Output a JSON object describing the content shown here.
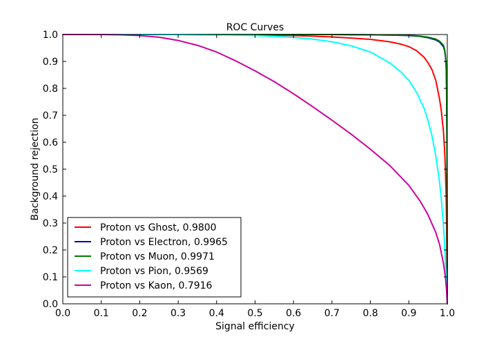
{
  "chart_data": {
    "type": "line",
    "title": "ROC Curves",
    "xlabel": "Signal efficiency",
    "ylabel": "Background rejection",
    "xlim": [
      0.0,
      1.0
    ],
    "ylim": [
      0.0,
      1.0
    ],
    "xticks": [
      "0.0",
      "0.1",
      "0.2",
      "0.3",
      "0.4",
      "0.5",
      "0.6",
      "0.7",
      "0.8",
      "0.9",
      "1.0"
    ],
    "yticks": [
      "0.0",
      "0.1",
      "0.2",
      "0.3",
      "0.4",
      "0.5",
      "0.6",
      "0.7",
      "0.8",
      "0.9",
      "1.0"
    ],
    "grid": false,
    "legend_position": "lower-left",
    "series": [
      {
        "name": "Proton vs Ghost, 0.9800",
        "color": "#ff0000",
        "x": [
          0.0,
          0.1,
          0.2,
          0.3,
          0.4,
          0.5,
          0.6,
          0.65,
          0.7,
          0.75,
          0.8,
          0.85,
          0.88,
          0.9,
          0.92,
          0.94,
          0.95,
          0.96,
          0.97,
          0.98,
          0.985,
          0.99,
          0.993,
          0.995,
          0.997,
          0.998,
          0.999,
          1.0
        ],
        "y": [
          1.0,
          1.0,
          1.0,
          1.0,
          0.999,
          0.998,
          0.996,
          0.994,
          0.991,
          0.987,
          0.982,
          0.973,
          0.964,
          0.955,
          0.94,
          0.915,
          0.895,
          0.87,
          0.83,
          0.76,
          0.71,
          0.64,
          0.57,
          0.5,
          0.4,
          0.3,
          0.15,
          0.0
        ]
      },
      {
        "name": "Proton vs Electron, 0.9965",
        "color": "#0000bb",
        "x": [
          0.0,
          0.2,
          0.4,
          0.6,
          0.7,
          0.8,
          0.85,
          0.9,
          0.93,
          0.95,
          0.97,
          0.98,
          0.99,
          0.993,
          0.995,
          0.997,
          0.998,
          0.999,
          1.0
        ],
        "y": [
          1.0,
          1.0,
          1.0,
          1.0,
          1.0,
          0.999,
          0.998,
          0.996,
          0.993,
          0.988,
          0.98,
          0.972,
          0.955,
          0.94,
          0.92,
          0.88,
          0.8,
          0.6,
          0.0
        ]
      },
      {
        "name": "Proton vs Muon, 0.9971",
        "color": "#007a00",
        "x": [
          0.0,
          0.2,
          0.4,
          0.6,
          0.7,
          0.8,
          0.85,
          0.9,
          0.93,
          0.95,
          0.97,
          0.98,
          0.99,
          0.993,
          0.995,
          0.997,
          0.998,
          0.999,
          1.0
        ],
        "y": [
          1.0,
          1.0,
          1.0,
          1.0,
          1.0,
          0.999,
          0.998,
          0.997,
          0.994,
          0.99,
          0.983,
          0.975,
          0.96,
          0.945,
          0.925,
          0.89,
          0.82,
          0.62,
          0.0
        ]
      },
      {
        "name": "Proton vs Pion, 0.9569",
        "color": "#00ffff",
        "x": [
          0.0,
          0.1,
          0.2,
          0.3,
          0.4,
          0.45,
          0.5,
          0.55,
          0.6,
          0.65,
          0.7,
          0.75,
          0.8,
          0.85,
          0.88,
          0.9,
          0.92,
          0.94,
          0.95,
          0.96,
          0.97,
          0.98,
          0.985,
          0.99,
          0.993,
          0.995,
          0.997,
          0.999,
          1.0
        ],
        "y": [
          1.0,
          1.0,
          1.0,
          1.0,
          0.999,
          0.998,
          0.996,
          0.993,
          0.989,
          0.983,
          0.973,
          0.958,
          0.935,
          0.895,
          0.86,
          0.83,
          0.785,
          0.725,
          0.68,
          0.625,
          0.55,
          0.45,
          0.38,
          0.29,
          0.22,
          0.16,
          0.1,
          0.04,
          0.0
        ]
      },
      {
        "name": "Proton vs Kaon, 0.7916",
        "color": "#cc0099",
        "x": [
          0.0,
          0.05,
          0.1,
          0.15,
          0.2,
          0.25,
          0.3,
          0.35,
          0.4,
          0.45,
          0.5,
          0.55,
          0.6,
          0.65,
          0.7,
          0.75,
          0.8,
          0.85,
          0.9,
          0.93,
          0.95,
          0.97,
          0.98,
          0.99,
          0.995,
          0.998,
          1.0
        ],
        "y": [
          1.0,
          1.0,
          1.0,
          0.999,
          0.996,
          0.99,
          0.978,
          0.96,
          0.935,
          0.902,
          0.865,
          0.825,
          0.78,
          0.732,
          0.682,
          0.63,
          0.574,
          0.514,
          0.44,
          0.38,
          0.33,
          0.265,
          0.22,
          0.15,
          0.1,
          0.05,
          0.0
        ]
      }
    ]
  }
}
